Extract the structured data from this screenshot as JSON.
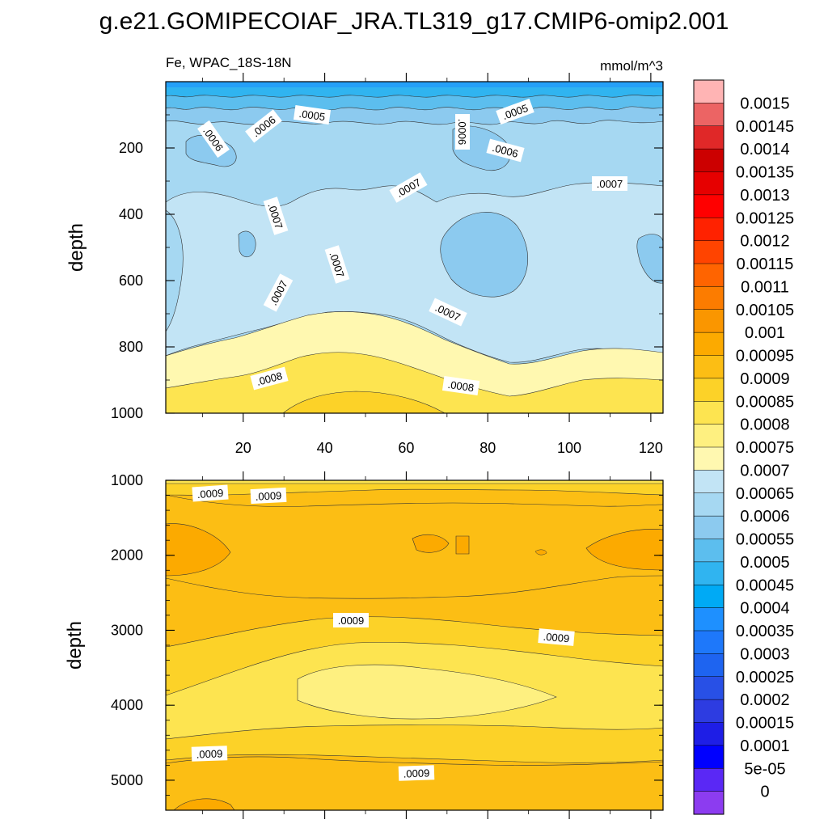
{
  "chart_data": {
    "type": "heatmap",
    "title": "g.e21.GOMIPECOIAF_JRA.TL319_g17.CMIP6-omip2.001",
    "left_label": "Fe, WPAC_18S-18N",
    "right_label": "mmol/m^3",
    "panels": [
      {
        "name": "upper",
        "ylabel": "depth",
        "xlim": [
          1,
          123
        ],
        "ylim": [
          1000,
          0
        ],
        "x_ticks": [
          "20",
          "40",
          "60",
          "80",
          "100",
          "120"
        ],
        "y_ticks": [
          "200",
          "400",
          "600",
          "800",
          "1000"
        ],
        "contour_labels": [
          ".0005",
          ".0005",
          ".0006",
          ".0006",
          ".0006",
          ".0006",
          ".0007",
          ".0007",
          ".0007",
          ".0007",
          ".0007",
          ".0007",
          ".0008",
          ".0008"
        ]
      },
      {
        "name": "lower",
        "ylabel": "depth",
        "xlim": [
          1,
          123
        ],
        "ylim": [
          5400,
          1000
        ],
        "x_ticks": [],
        "y_ticks": [
          "1000",
          "2000",
          "3000",
          "4000",
          "5000"
        ],
        "contour_labels": [
          ".0009",
          ".0009",
          ".0009",
          ".0009",
          ".0009",
          ".0009"
        ]
      }
    ],
    "colorbar": {
      "labels": [
        "0.0015",
        "0.00145",
        "0.0014",
        "0.00135",
        "0.0013",
        "0.00125",
        "0.0012",
        "0.00115",
        "0.0011",
        "0.00105",
        "0.001",
        "0.00095",
        "0.0009",
        "0.00085",
        "0.0008",
        "0.00075",
        "0.0007",
        "0.00065",
        "0.0006",
        "0.00055",
        "0.0005",
        "0.00045",
        "0.0004",
        "0.00035",
        "0.0003",
        "0.00025",
        "0.0002",
        "0.00015",
        "0.0001",
        "5e-05",
        "0"
      ],
      "colors": [
        "#ffb4b4",
        "#ec6464",
        "#e02828",
        "#cc0000",
        "#e60000",
        "#ff0000",
        "#ff2200",
        "#ff4400",
        "#ff6400",
        "#fc7c00",
        "#fa9600",
        "#fcaa00",
        "#fcbe14",
        "#fcd228",
        "#fde450",
        "#fef080",
        "#fff8b0",
        "#c2e4f5",
        "#a6d8f2",
        "#8ccaef",
        "#5cbeee",
        "#30b4f0",
        "#00aaf5",
        "#1e90ff",
        "#1e78fa",
        "#1e64f0",
        "#2850e6",
        "#2d3ce1",
        "#1e1ee6",
        "#0000ff",
        "#5a28f5",
        "#8c3cf0"
      ]
    }
  }
}
